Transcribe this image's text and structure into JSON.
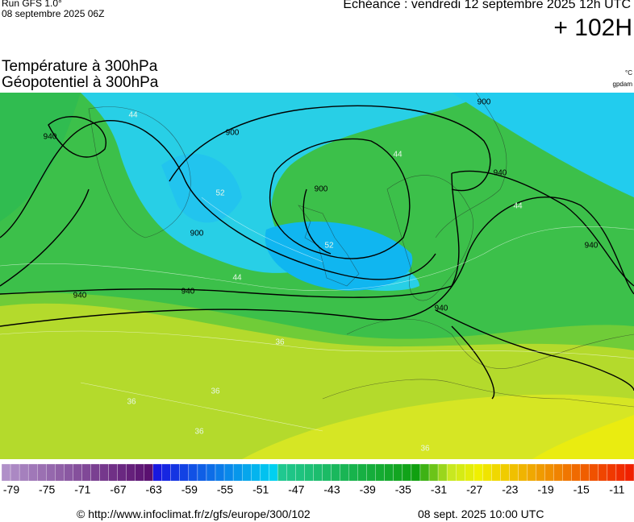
{
  "header": {
    "run": "Run GFS 1.0°",
    "run_date": "08 septembre 2025 06Z",
    "valid": "Echéance : vendredi 12 septembre 2025 12h UTC",
    "lead": "+ 102H",
    "title_1": "Température à 300hPa",
    "title_2": "Géopotentiel à 300hPa",
    "unit_1": "°C",
    "unit_2": "gpdam"
  },
  "map": {
    "contour_labels": [
      940,
      900,
      44,
      52,
      900,
      900,
      940,
      940,
      44,
      52,
      44,
      900,
      940,
      44,
      940,
      940,
      36,
      36,
      36,
      36,
      36
    ]
  },
  "legend": {
    "labels": [
      -79,
      -75,
      -71,
      -67,
      -63,
      -59,
      -55,
      -51,
      -47,
      -43,
      -39,
      -35,
      -31,
      -27,
      -23,
      -19,
      -15,
      -11
    ]
  },
  "footer": {
    "source": "© http://www.infoclimat.fr/z/gfs/europe/300/102",
    "date": "08 sept. 2025 10:00 UTC"
  }
}
